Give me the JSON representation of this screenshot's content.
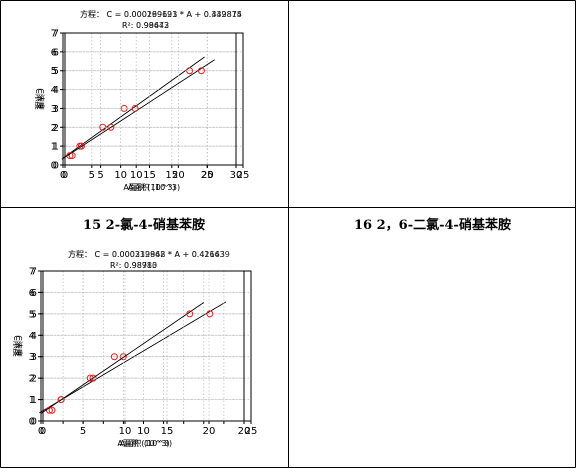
{
  "captions": [
    "15 2-氯-4-硝基苯胺",
    "16 2，6-二氯-4-硝基苯胺"
  ],
  "chart_data": [
    {
      "type": "scatter",
      "title": "方程： C = 0.000269693 * A + 0.439815",
      "subtitle": "R²: 0.98643",
      "xlabel": "A面积 (10^3)",
      "ylabel": "C浓度",
      "xlim": [
        0,
        25
      ],
      "ylim": [
        0,
        7
      ],
      "xticks": [
        0,
        5,
        10,
        15,
        20,
        25
      ],
      "yticks": [
        0,
        1,
        2,
        3,
        4,
        5,
        6,
        7
      ],
      "grid": true,
      "fit": {
        "slope": 0.269693,
        "intercept": 0.439815,
        "x_range": [
          -0.2,
          19.6
        ]
      },
      "points": {
        "x": [
          1.0,
          2.1,
          5.3,
          8.3,
          17.5
        ],
        "y": [
          0.5,
          1.0,
          2.0,
          3.0,
          5.0
        ]
      }
    },
    {
      "type": "scatter",
      "title": "方程： C = 0.000199121 * A + 0.342874",
      "subtitle": "R²: 0.99472",
      "xlabel": "A面积 (10^3)",
      "ylabel": "C浓度",
      "xlim": [
        0,
        30
      ],
      "ylim": [
        0,
        7
      ],
      "xticks": [
        0,
        5,
        10,
        15,
        20,
        25,
        30
      ],
      "yticks": [
        0,
        1,
        2,
        3,
        4,
        5,
        6,
        7
      ],
      "grid": true,
      "fit": {
        "slope": 0.199121,
        "intercept": 0.342874,
        "x_range": [
          -0.2,
          26.3
        ]
      },
      "points": {
        "x": [
          1.2,
          3.2,
          8.3,
          12.5,
          24.0
        ],
        "y": [
          0.5,
          1.0,
          2.0,
          3.0,
          5.0
        ]
      }
    },
    {
      "type": "scatter",
      "title": "方程： C = 0.000232948 * A + 0.42643",
      "subtitle": "R²: 0.98783",
      "xlabel": "A面积 (10^3)",
      "ylabel": "C浓度",
      "xlim": [
        0,
        25
      ],
      "ylim": [
        0,
        7
      ],
      "xticks": [
        0,
        5,
        10,
        15,
        20,
        25
      ],
      "yticks": [
        0,
        1,
        2,
        3,
        4,
        5,
        6,
        7
      ],
      "grid": true,
      "fit": {
        "slope": 0.232948,
        "intercept": 0.42643,
        "x_range": [
          -0.2,
          22.0
        ]
      },
      "points": {
        "x": [
          1.0,
          2.4,
          6.2,
          9.8,
          20.1
        ],
        "y": [
          0.5,
          1.0,
          2.0,
          3.0,
          5.0
        ]
      }
    },
    {
      "type": "scatter",
      "title": "方程： C = 0.000319862 * A + 0.411639",
      "subtitle": "R²: 0.98910",
      "xlabel": "A面积 (10^3)",
      "ylabel": "C浓度",
      "xlim": [
        0,
        20
      ],
      "ylim": [
        0,
        7
      ],
      "xticks": [
        0,
        2,
        4,
        6,
        8,
        10,
        12,
        14,
        16,
        18,
        20
      ],
      "xticklabels": [
        "0",
        "",
        "",
        "",
        "",
        "10",
        "",
        "",
        "",
        "",
        "20"
      ],
      "xtick_every": 5,
      "yticks": [
        0,
        1,
        2,
        3,
        4,
        5,
        6,
        7
      ],
      "grid": true,
      "fit": {
        "slope": 0.319862,
        "intercept": 0.411639,
        "x_range": [
          -0.2,
          16.0
        ]
      },
      "points": {
        "x": [
          0.9,
          1.8,
          4.7,
          7.1,
          14.6
        ],
        "y": [
          0.5,
          1.0,
          2.0,
          3.0,
          5.0
        ]
      }
    }
  ]
}
